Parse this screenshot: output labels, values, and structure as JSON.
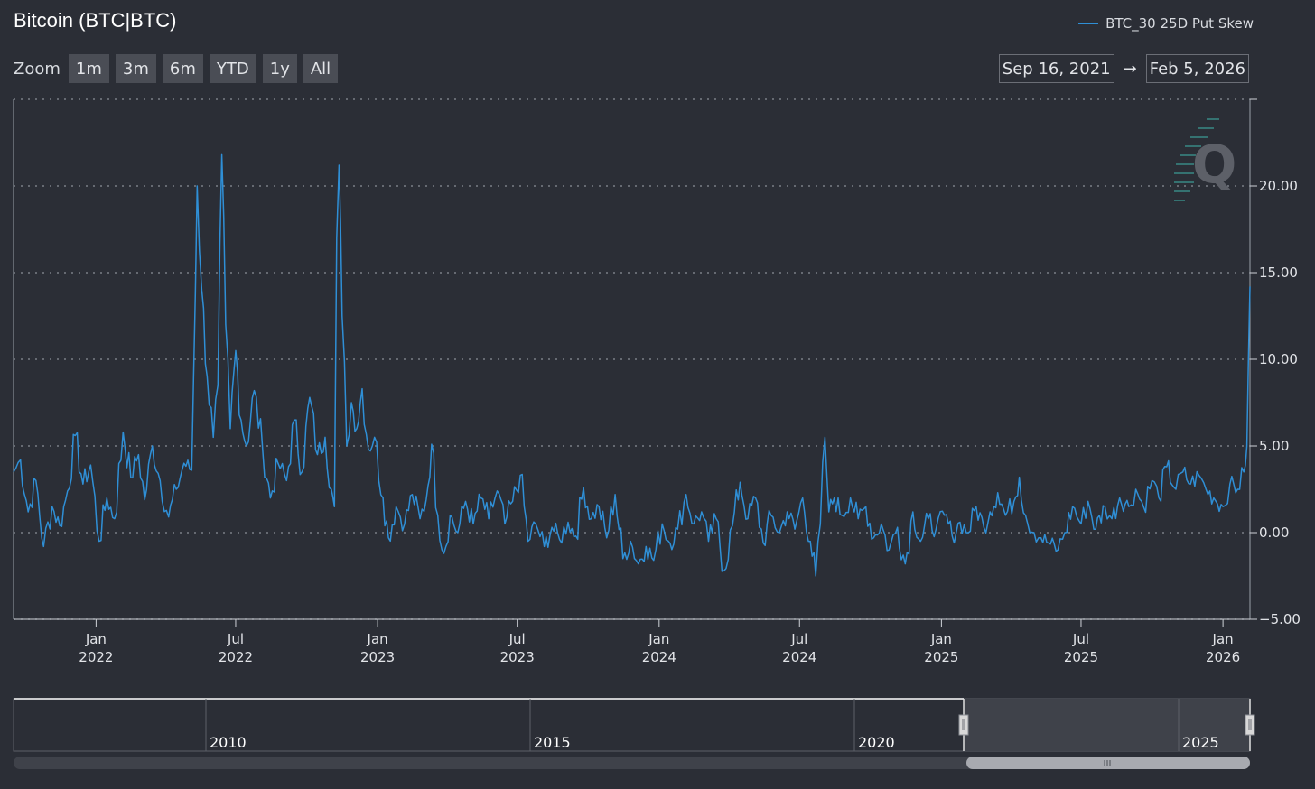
{
  "header": {
    "title": "Bitcoin (BTC|BTC)"
  },
  "legend": {
    "label": "BTC_30 25D Put Skew",
    "color": "#2f8fd6"
  },
  "zoom": {
    "label": "Zoom",
    "buttons": [
      "1m",
      "3m",
      "6m",
      "YTD",
      "1y",
      "All"
    ]
  },
  "range": {
    "from": "Sep 16, 2021",
    "arrow": "→",
    "to": "Feb 5, 2026"
  },
  "navigator": {
    "labels": [
      "2010",
      "2015",
      "2020",
      "2025"
    ]
  },
  "chart_data": {
    "type": "line",
    "title": "Bitcoin (BTC|BTC)",
    "xlabel": "",
    "ylabel": "",
    "ylim": [
      -5,
      25
    ],
    "yticks": [
      "20.00",
      "15.00",
      "10.00",
      "5.00",
      "0.00",
      "−5.00"
    ],
    "ytick_values": [
      20,
      15,
      10,
      5,
      0,
      -5
    ],
    "xticks": [
      {
        "month": "Jan",
        "year": "2022",
        "date": "2022-01-01"
      },
      {
        "month": "Jul",
        "year": "2022",
        "date": "2022-07-01"
      },
      {
        "month": "Jan",
        "year": "2023",
        "date": "2023-01-01"
      },
      {
        "month": "Jul",
        "year": "2023",
        "date": "2023-07-01"
      },
      {
        "month": "Jan",
        "year": "2024",
        "date": "2024-01-01"
      },
      {
        "month": "Jul",
        "year": "2024",
        "date": "2024-07-01"
      },
      {
        "month": "Jan",
        "year": "2025",
        "date": "2025-01-01"
      },
      {
        "month": "Jul",
        "year": "2025",
        "date": "2025-07-01"
      },
      {
        "month": "Jan",
        "year": "2026",
        "date": "2026-01-01"
      }
    ],
    "xrange": [
      "2021-09-16",
      "2026-02-05"
    ],
    "grid": true,
    "legend_position": "top-right",
    "series": [
      {
        "name": "BTC_30 25D Put Skew",
        "color": "#2f8fd6",
        "points": [
          [
            "2021-09-16",
            3.5
          ],
          [
            "2021-09-25",
            4.2
          ],
          [
            "2021-10-05",
            1.2
          ],
          [
            "2021-10-15",
            3.0
          ],
          [
            "2021-10-25",
            -0.8
          ],
          [
            "2021-11-05",
            1.5
          ],
          [
            "2021-11-15",
            0.4
          ],
          [
            "2021-11-25",
            2.4
          ],
          [
            "2021-12-05",
            5.6
          ],
          [
            "2021-12-15",
            2.8
          ],
          [
            "2021-12-25",
            3.9
          ],
          [
            "2022-01-05",
            -0.5
          ],
          [
            "2022-01-15",
            2.0
          ],
          [
            "2022-01-25",
            0.8
          ],
          [
            "2022-02-05",
            5.8
          ],
          [
            "2022-02-15",
            3.2
          ],
          [
            "2022-02-25",
            4.5
          ],
          [
            "2022-03-05",
            1.9
          ],
          [
            "2022-03-15",
            5.0
          ],
          [
            "2022-03-25",
            3.0
          ],
          [
            "2022-04-05",
            0.9
          ],
          [
            "2022-04-15",
            2.5
          ],
          [
            "2022-04-25",
            4.0
          ],
          [
            "2022-05-05",
            3.6
          ],
          [
            "2022-05-12",
            20.0
          ],
          [
            "2022-05-18",
            14.0
          ],
          [
            "2022-05-25",
            9.0
          ],
          [
            "2022-06-02",
            5.5
          ],
          [
            "2022-06-08",
            8.5
          ],
          [
            "2022-06-13",
            21.8
          ],
          [
            "2022-06-18",
            12.0
          ],
          [
            "2022-06-24",
            6.0
          ],
          [
            "2022-07-01",
            10.5
          ],
          [
            "2022-07-08",
            6.5
          ],
          [
            "2022-07-15",
            5.0
          ],
          [
            "2022-07-25",
            8.2
          ],
          [
            "2022-08-05",
            4.8
          ],
          [
            "2022-08-15",
            2.0
          ],
          [
            "2022-08-25",
            4.0
          ],
          [
            "2022-09-05",
            3.0
          ],
          [
            "2022-09-15",
            6.5
          ],
          [
            "2022-09-25",
            3.5
          ],
          [
            "2022-10-05",
            7.8
          ],
          [
            "2022-10-15",
            4.5
          ],
          [
            "2022-10-25",
            5.5
          ],
          [
            "2022-11-02",
            2.5
          ],
          [
            "2022-11-06",
            1.5
          ],
          [
            "2022-11-09",
            17.0
          ],
          [
            "2022-11-12",
            21.2
          ],
          [
            "2022-11-16",
            12.5
          ],
          [
            "2022-11-22",
            5.0
          ],
          [
            "2022-11-28",
            7.5
          ],
          [
            "2022-12-05",
            6.0
          ],
          [
            "2022-12-12",
            8.3
          ],
          [
            "2022-12-20",
            4.8
          ],
          [
            "2022-12-28",
            5.5
          ],
          [
            "2023-01-08",
            2.0
          ],
          [
            "2023-01-15",
            -0.3
          ],
          [
            "2023-01-25",
            1.5
          ],
          [
            "2023-02-05",
            0.5
          ],
          [
            "2023-02-15",
            2.2
          ],
          [
            "2023-02-25",
            0.8
          ],
          [
            "2023-03-05",
            1.9
          ],
          [
            "2023-03-12",
            5.1
          ],
          [
            "2023-03-20",
            1.0
          ],
          [
            "2023-03-28",
            -1.2
          ],
          [
            "2023-04-05",
            1.0
          ],
          [
            "2023-04-15",
            0.0
          ],
          [
            "2023-04-25",
            1.8
          ],
          [
            "2023-05-05",
            0.5
          ],
          [
            "2023-05-15",
            2.0
          ],
          [
            "2023-05-25",
            0.8
          ],
          [
            "2023-06-05",
            2.4
          ],
          [
            "2023-06-15",
            0.5
          ],
          [
            "2023-06-25",
            1.8
          ],
          [
            "2023-07-05",
            3.3
          ],
          [
            "2023-07-15",
            -0.5
          ],
          [
            "2023-07-25",
            0.5
          ],
          [
            "2023-08-05",
            -0.8
          ],
          [
            "2023-08-15",
            0.3
          ],
          [
            "2023-08-25",
            -0.4
          ],
          [
            "2023-09-05",
            0.6
          ],
          [
            "2023-09-15",
            -0.2
          ],
          [
            "2023-09-25",
            2.6
          ],
          [
            "2023-10-05",
            0.8
          ],
          [
            "2023-10-15",
            1.5
          ],
          [
            "2023-10-25",
            -0.3
          ],
          [
            "2023-11-05",
            2.2
          ],
          [
            "2023-11-15",
            -1.5
          ],
          [
            "2023-11-25",
            -0.5
          ],
          [
            "2023-12-05",
            -1.8
          ],
          [
            "2023-12-15",
            -0.8
          ],
          [
            "2023-12-25",
            -1.6
          ],
          [
            "2024-01-05",
            0.5
          ],
          [
            "2024-01-15",
            -0.6
          ],
          [
            "2024-01-25",
            0.2
          ],
          [
            "2024-02-05",
            2.2
          ],
          [
            "2024-02-15",
            0.5
          ],
          [
            "2024-02-25",
            1.2
          ],
          [
            "2024-03-05",
            -0.5
          ],
          [
            "2024-03-15",
            0.8
          ],
          [
            "2024-03-25",
            -2.2
          ],
          [
            "2024-04-05",
            0.4
          ],
          [
            "2024-04-15",
            2.9
          ],
          [
            "2024-04-25",
            0.8
          ],
          [
            "2024-05-05",
            2.0
          ],
          [
            "2024-05-15",
            -0.6
          ],
          [
            "2024-05-25",
            1.0
          ],
          [
            "2024-06-05",
            0.0
          ],
          [
            "2024-06-15",
            1.2
          ],
          [
            "2024-06-25",
            0.2
          ],
          [
            "2024-07-05",
            2.0
          ],
          [
            "2024-07-15",
            -0.5
          ],
          [
            "2024-07-22",
            -2.5
          ],
          [
            "2024-07-28",
            0.5
          ],
          [
            "2024-08-03",
            5.5
          ],
          [
            "2024-08-08",
            1.2
          ],
          [
            "2024-08-15",
            2.0
          ],
          [
            "2024-08-25",
            1.0
          ],
          [
            "2024-09-05",
            2.0
          ],
          [
            "2024-09-15",
            0.8
          ],
          [
            "2024-09-25",
            1.5
          ],
          [
            "2024-10-05",
            -0.3
          ],
          [
            "2024-10-15",
            0.5
          ],
          [
            "2024-10-25",
            -1.0
          ],
          [
            "2024-11-05",
            0.3
          ],
          [
            "2024-11-15",
            -1.8
          ],
          [
            "2024-11-25",
            1.2
          ],
          [
            "2024-12-05",
            -0.5
          ],
          [
            "2024-12-15",
            0.8
          ],
          [
            "2024-12-25",
            0.2
          ],
          [
            "2025-01-05",
            1.0
          ],
          [
            "2025-01-15",
            -0.2
          ],
          [
            "2025-01-25",
            0.6
          ],
          [
            "2025-02-05",
            0.0
          ],
          [
            "2025-02-15",
            1.5
          ],
          [
            "2025-02-25",
            0.3
          ],
          [
            "2025-03-05",
            1.2
          ],
          [
            "2025-03-15",
            2.3
          ],
          [
            "2025-03-25",
            1.0
          ],
          [
            "2025-04-05",
            1.8
          ],
          [
            "2025-04-12",
            3.2
          ],
          [
            "2025-04-20",
            1.0
          ],
          [
            "2025-05-01",
            0.0
          ],
          [
            "2025-05-10",
            -0.3
          ],
          [
            "2025-05-20",
            -0.6
          ],
          [
            "2025-06-01",
            -1.0
          ],
          [
            "2025-06-10",
            0.0
          ],
          [
            "2025-06-20",
            1.5
          ],
          [
            "2025-07-01",
            0.5
          ],
          [
            "2025-07-10",
            1.8
          ],
          [
            "2025-07-20",
            0.2
          ],
          [
            "2025-08-01",
            1.5
          ],
          [
            "2025-08-10",
            0.8
          ],
          [
            "2025-08-20",
            2.0
          ],
          [
            "2025-09-01",
            1.5
          ],
          [
            "2025-09-10",
            2.5
          ],
          [
            "2025-09-20",
            1.5
          ],
          [
            "2025-10-01",
            3.0
          ],
          [
            "2025-10-10",
            2.0
          ],
          [
            "2025-10-20",
            3.8
          ],
          [
            "2025-11-01",
            2.5
          ],
          [
            "2025-11-10",
            3.5
          ],
          [
            "2025-11-20",
            2.8
          ],
          [
            "2025-12-01",
            3.3
          ],
          [
            "2025-12-10",
            2.5
          ],
          [
            "2025-12-20",
            2.0
          ],
          [
            "2026-01-01",
            1.5
          ],
          [
            "2026-01-10",
            2.8
          ],
          [
            "2026-01-20",
            2.5
          ],
          [
            "2026-01-28",
            3.5
          ],
          [
            "2026-02-01",
            5.0
          ],
          [
            "2026-02-03",
            10.0
          ],
          [
            "2026-02-05",
            14.2
          ]
        ]
      }
    ]
  }
}
